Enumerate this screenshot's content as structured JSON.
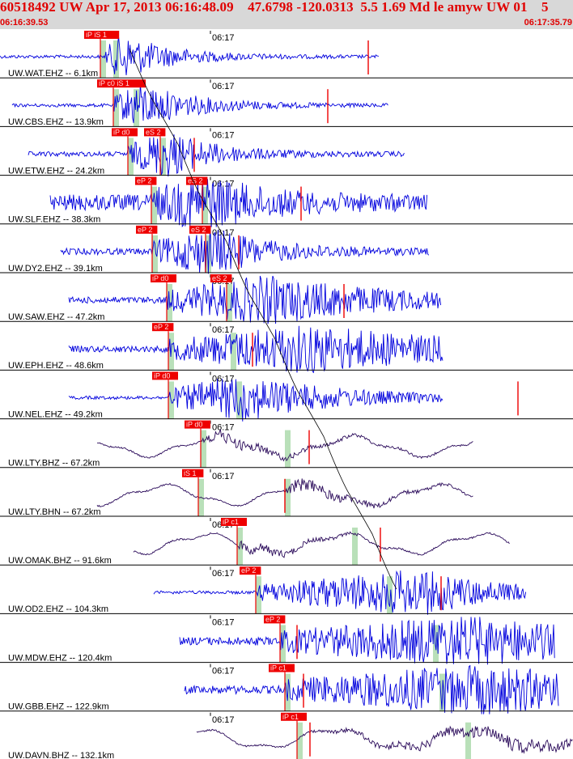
{
  "header": {
    "title": "60518492 UW Apr 17, 2013 06:16:48.09    47.6798 -120.0313  5.5 1.69 Md le amyw UW 01    5",
    "start_time": "06:16:39.53",
    "end_time": "06:17:35.79"
  },
  "colors": {
    "header_bg": "#d8d8d8",
    "title": "#e00000",
    "trace_blue": "#0000dd",
    "trace_purple": "#2a0a5a",
    "pick_red": "#ee0000",
    "window_green": "#b9e0b9"
  },
  "tick_label": "06:17",
  "traces": [
    {
      "label": "UW.WAT.EHZ -- 6.1km",
      "color": "blue",
      "picks": [
        "iP iS 1"
      ]
    },
    {
      "label": "UW.CBS.EHZ -- 13.9km",
      "color": "blue",
      "picks": [
        "iP c0 iS 1"
      ]
    },
    {
      "label": "UW.ETW.EHZ -- 24.2km",
      "color": "blue",
      "picks": [
        "iP d0",
        "eS 2"
      ]
    },
    {
      "label": "UW.SLF.EHZ -- 38.3km",
      "color": "blue",
      "picks": [
        "eP 2",
        "eS 2"
      ]
    },
    {
      "label": "UW.DY2.EHZ -- 39.1km",
      "color": "blue",
      "picks": [
        "eP 2",
        "eS 2"
      ]
    },
    {
      "label": "UW.SAW.EHZ -- 47.2km",
      "color": "blue",
      "picks": [
        "iP d0",
        "eS 2"
      ]
    },
    {
      "label": "UW.EPH.EHZ -- 48.6km",
      "color": "blue",
      "picks": [
        "eP 2"
      ]
    },
    {
      "label": "UW.NEL.EHZ -- 49.2km",
      "color": "blue",
      "picks": [
        "iP d0"
      ]
    },
    {
      "label": "UW.LTY.BHZ -- 67.2km",
      "color": "purple",
      "picks": [
        "iP d0"
      ]
    },
    {
      "label": "UW.LTY.BHN -- 67.2km",
      "color": "purple",
      "picks": [
        "iS 1"
      ]
    },
    {
      "label": "UW.OMAK.BHZ -- 91.6km",
      "color": "purple",
      "picks": [
        "iP c1"
      ]
    },
    {
      "label": "UW.OD2.EHZ -- 104.3km",
      "color": "blue",
      "picks": [
        "eP 2"
      ]
    },
    {
      "label": "UW.MDW.EHZ -- 120.4km",
      "color": "blue",
      "picks": [
        "eP 2"
      ]
    },
    {
      "label": "UW.GBB.EHZ -- 122.9km",
      "color": "blue",
      "picks": [
        "iP c1"
      ]
    },
    {
      "label": "UW.DAVN.BHZ -- 132.1km",
      "color": "purple",
      "picks": [
        "iP c1"
      ]
    }
  ]
}
